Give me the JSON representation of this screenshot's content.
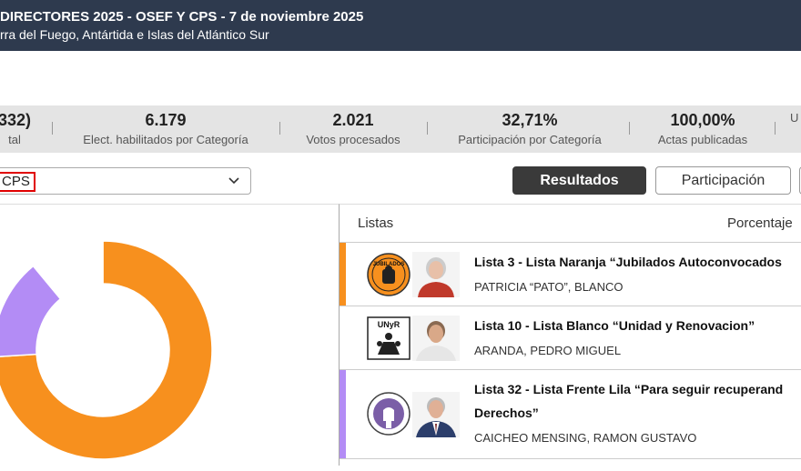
{
  "header": {
    "title": "DIRECTORES 2025 - OSEF Y CPS - 7 de noviembre 2025",
    "subtitle": "rra del Fuego, Antártida e Islas del Atlántico Sur"
  },
  "stats": [
    {
      "value": "332)",
      "label": "tal"
    },
    {
      "value": "6.179",
      "label": "Elect. habilitados por Categoría"
    },
    {
      "value": "2.021",
      "label": "Votos procesados"
    },
    {
      "value": "32,71%",
      "label": "Participación por Categoría"
    },
    {
      "value": "100,00%",
      "label": "Actas publicadas"
    },
    {
      "value": "",
      "label": "U"
    }
  ],
  "selector": {
    "value": "CPS"
  },
  "buttons": {
    "results": "Resultados",
    "participation": "Participación"
  },
  "table": {
    "col_lists": "Listas",
    "col_pct": "Porcentaje"
  },
  "lists": [
    {
      "name": "Lista 3 - Lista Naranja “Jubilados Autoconvocados",
      "candidate": "PATRICIA “PATO”, BLANCO",
      "logo_text": "JUBILADOS",
      "color": "#f7901e",
      "share": 0.74
    },
    {
      "name": "Lista 10 - Lista Blanco “Unidad y Renovacion”",
      "candidate": "ARANDA, PEDRO MIGUEL",
      "logo_text": "UNyR",
      "color": "#ffffff",
      "share": 0.11
    },
    {
      "name_line1": "Lista 32 - Lista Frente Lila “Para seguir recuperand",
      "name_line2": "Derechos”",
      "candidate": "CAICHEO MENSING, RAMON GUSTAVO",
      "color": "#b38cf5",
      "share": 0.15
    }
  ]
}
